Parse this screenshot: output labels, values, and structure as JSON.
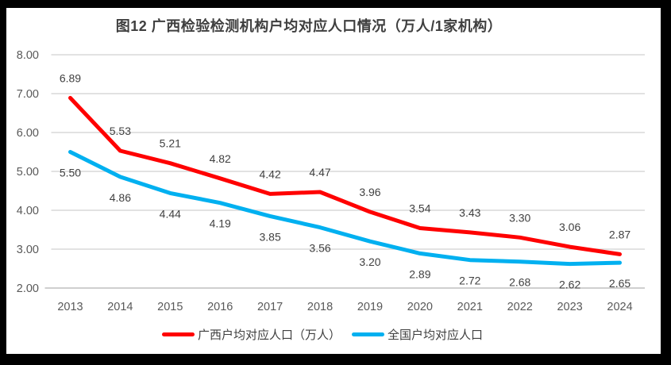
{
  "window": {
    "frame_color": "#000000",
    "canvas_color": "#FFFFFF"
  },
  "chart_data": {
    "type": "line",
    "title": "图12 广西检验检测机构户均对应人口情况（万人/1家机构）",
    "categories": [
      "2013",
      "2014",
      "2015",
      "2016",
      "2017",
      "2018",
      "2019",
      "2020",
      "2021",
      "2022",
      "2023",
      "2024"
    ],
    "series": [
      {
        "name": "广西户均对应人口（万人）",
        "color": "#FF0000",
        "values": [
          6.89,
          5.53,
          5.21,
          4.82,
          4.42,
          4.47,
          3.96,
          3.54,
          3.43,
          3.3,
          3.06,
          2.87
        ],
        "data_label_position": "above"
      },
      {
        "name": "全国户均对应人口",
        "color": "#00B0F0",
        "values": [
          5.5,
          4.86,
          4.44,
          4.19,
          3.85,
          3.56,
          3.2,
          2.89,
          2.72,
          2.68,
          2.62,
          2.65
        ],
        "data_label_position": "below"
      }
    ],
    "xlabel": "",
    "ylabel": "",
    "ylim": [
      2.0,
      8.0
    ],
    "y_tick_step": 1.0,
    "y_tick_labels": [
      "2.00",
      "3.00",
      "4.00",
      "5.00",
      "6.00",
      "7.00",
      "8.00"
    ],
    "data_label_format": "0.00",
    "grid": true,
    "legend_position": "bottom",
    "colors": {
      "gridline": "#D9D9D9",
      "axis_line": "#BFBFBF",
      "tick_label": "#595959",
      "data_label": "#404040",
      "title": "#3F3F3F"
    }
  }
}
